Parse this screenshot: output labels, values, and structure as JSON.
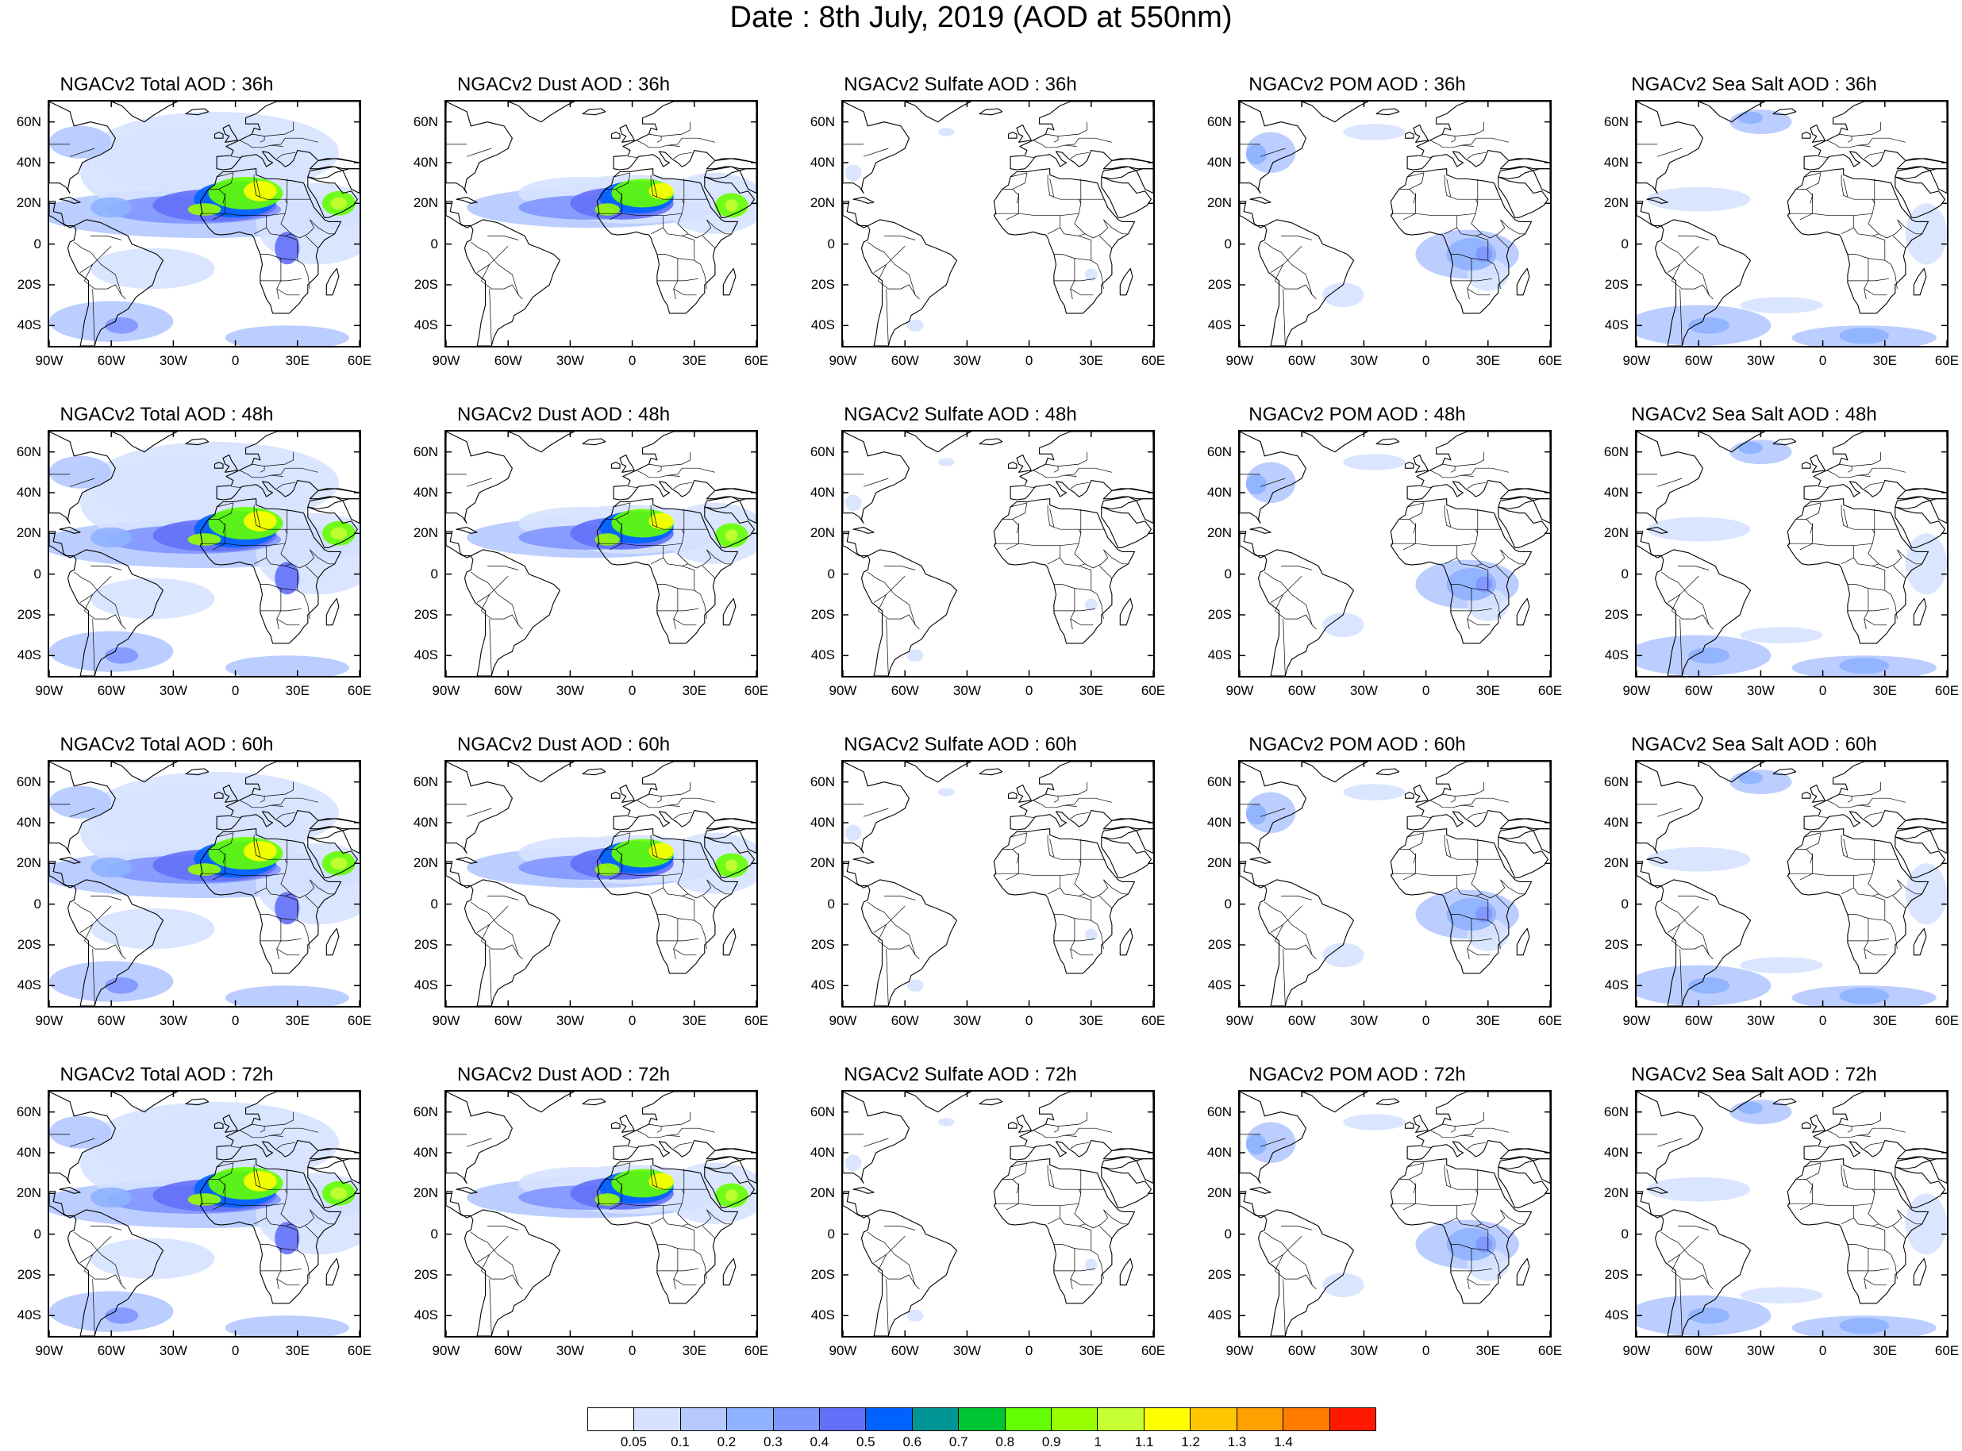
{
  "title": "Date : 8th July, 2019 (AOD at 550nm)",
  "lat_labels": [
    "60N",
    "40N",
    "20N",
    "0",
    "20S",
    "40S"
  ],
  "lat_values": [
    60,
    40,
    20,
    0,
    -20,
    -40
  ],
  "lon_labels": [
    "90W",
    "60W",
    "30W",
    "0",
    "30E",
    "60E"
  ],
  "lon_values": [
    -90,
    -60,
    -30,
    0,
    30,
    60
  ],
  "map_extent": {
    "lon_min": -90,
    "lon_max": 60,
    "lat_min": -50,
    "lat_max": 70
  },
  "rows": [
    {
      "forecast_hour": "36h",
      "panels": [
        {
          "title": "NGACv2 Total AOD : 36h",
          "aerosol": "total"
        },
        {
          "title": "NGACv2 Dust AOD : 36h",
          "aerosol": "dust"
        },
        {
          "title": "NGACv2 Sulfate AOD : 36h",
          "aerosol": "sulfate"
        },
        {
          "title": "NGACv2 POM AOD : 36h",
          "aerosol": "pom"
        },
        {
          "title": "NGACv2 Sea Salt AOD : 36h",
          "aerosol": "seasalt"
        }
      ]
    },
    {
      "forecast_hour": "48h",
      "panels": [
        {
          "title": "NGACv2 Total AOD : 48h",
          "aerosol": "total"
        },
        {
          "title": "NGACv2 Dust AOD : 48h",
          "aerosol": "dust"
        },
        {
          "title": "NGACv2 Sulfate AOD : 48h",
          "aerosol": "sulfate"
        },
        {
          "title": "NGACv2 POM AOD : 48h",
          "aerosol": "pom"
        },
        {
          "title": "NGACv2 Sea Salt AOD : 48h",
          "aerosol": "seasalt"
        }
      ]
    },
    {
      "forecast_hour": "60h",
      "panels": [
        {
          "title": "NGACv2 Total AOD : 60h",
          "aerosol": "total"
        },
        {
          "title": "NGACv2 Dust AOD : 60h",
          "aerosol": "dust"
        },
        {
          "title": "NGACv2 Sulfate AOD : 60h",
          "aerosol": "sulfate"
        },
        {
          "title": "NGACv2 POM AOD : 60h",
          "aerosol": "pom"
        },
        {
          "title": "NGACv2 Sea Salt AOD : 60h",
          "aerosol": "seasalt"
        }
      ]
    },
    {
      "forecast_hour": "72h",
      "panels": [
        {
          "title": "NGACv2 Total AOD : 72h",
          "aerosol": "total"
        },
        {
          "title": "NGACv2 Dust AOD : 72h",
          "aerosol": "dust"
        },
        {
          "title": "NGACv2 Sulfate AOD : 72h",
          "aerosol": "sulfate"
        },
        {
          "title": "NGACv2 POM AOD : 72h",
          "aerosol": "pom"
        },
        {
          "title": "NGACv2 Sea Salt  AOD : 72h",
          "aerosol": "seasalt"
        }
      ]
    }
  ],
  "colorbar": {
    "labels": [
      "0.05",
      "0.1",
      "0.2",
      "0.3",
      "0.4",
      "0.5",
      "0.6",
      "0.7",
      "0.8",
      "0.9",
      "1",
      "1.1",
      "1.2",
      "1.3",
      "1.4"
    ],
    "colors": [
      "#ffffff",
      "#d6e2ff",
      "#b5c9ff",
      "#8eb2ff",
      "#7f96ff",
      "#6370f8",
      "#0063ff",
      "#009696",
      "#00c633",
      "#63ff00",
      "#96ff00",
      "#c6ff33",
      "#ffff00",
      "#ffc600",
      "#ffa000",
      "#ff7c00",
      "#ff1900"
    ]
  }
}
